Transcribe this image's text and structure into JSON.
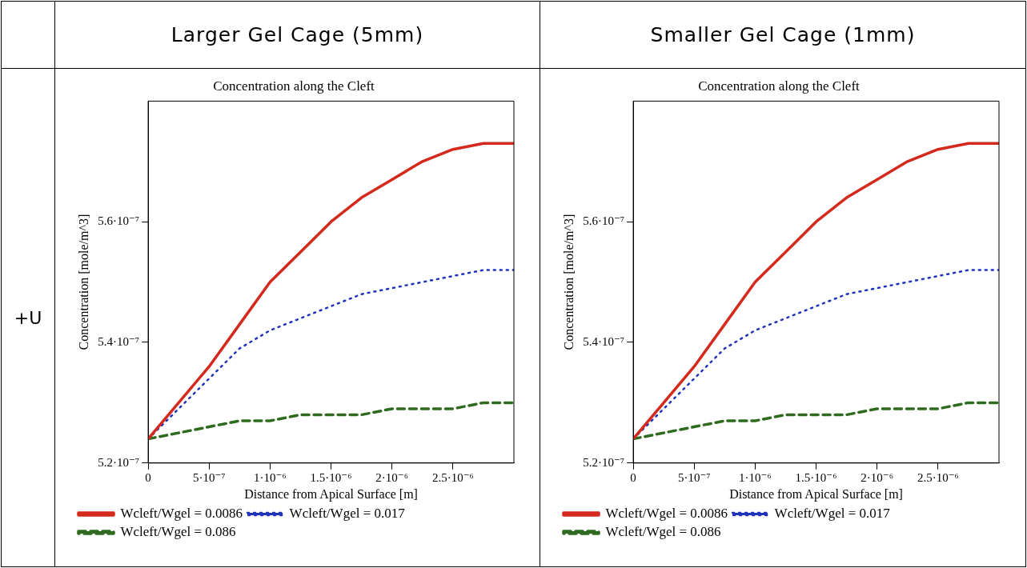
{
  "chart_data": [
    {
      "type": "line",
      "title": "Larger Gel Cage (5mm)",
      "subtitle": "Concentration along the Cleft",
      "xlabel": "Distance from Apical Surface [m]",
      "ylabel": "Concentration [mole/m^3]",
      "annotations": [
        "+U"
      ],
      "x": [
        0,
        2.5e-07,
        5e-07,
        7.5e-07,
        1e-06,
        1.25e-06,
        1.5e-06,
        1.75e-06,
        2e-06,
        2.25e-06,
        2.5e-06,
        2.75e-06,
        3e-06
      ],
      "series": [
        {
          "name": "Wcleft/Wgel = 0.0086",
          "color": "#d42a1e",
          "line_style": "solid",
          "values": [
            5.24e-07,
            5.3e-07,
            5.36e-07,
            5.43e-07,
            5.5e-07,
            5.55e-07,
            5.6e-07,
            5.64e-07,
            5.67e-07,
            5.7e-07,
            5.72e-07,
            5.73e-07,
            5.73e-07
          ]
        },
        {
          "name": "Wcleft/Wgel = 0.017",
          "color": "#2233bb",
          "line_style": "dotted",
          "values": [
            5.24e-07,
            5.29e-07,
            5.34e-07,
            5.39e-07,
            5.42e-07,
            5.44e-07,
            5.46e-07,
            5.48e-07,
            5.49e-07,
            5.5e-07,
            5.51e-07,
            5.52e-07,
            5.52e-07
          ]
        },
        {
          "name": "Wcleft/Wgel = 0.086",
          "color": "#2e6b1e",
          "line_style": "dashed",
          "values": [
            5.24e-07,
            5.25e-07,
            5.26e-07,
            5.27e-07,
            5.27e-07,
            5.28e-07,
            5.28e-07,
            5.28e-07,
            5.29e-07,
            5.29e-07,
            5.29e-07,
            5.3e-07,
            5.3e-07
          ]
        }
      ],
      "xlim": [
        0,
        3e-06
      ],
      "xticks": [
        0,
        {
          "value": 5e-07,
          "label": "5·10⁻⁷"
        },
        {
          "value": 1e-06,
          "label": "1·10⁻⁶"
        },
        {
          "value": 1.5e-06,
          "label": "1.5·10⁻⁶"
        },
        {
          "value": 2e-06,
          "label": "2·10⁻⁶"
        },
        {
          "value": 2.5e-06,
          "label": "2.5·10⁻⁶"
        }
      ],
      "ylim": [
        5.2e-07,
        5.8e-07
      ],
      "yticks": [
        {
          "value": 5.2e-07,
          "label": "5.2·10⁻⁷"
        },
        {
          "value": 5.4e-07,
          "label": "5.4·10⁻⁷"
        },
        {
          "value": 5.6e-07,
          "label": "5.6·10⁻⁷"
        }
      ],
      "legend": "bottom",
      "marker": "none",
      "grid": false
    },
    {
      "type": "line",
      "title": "Smaller Gel Cage (1mm)",
      "subtitle": "Concentration along the Cleft",
      "xlabel": "Distance from Apical Surface [m]",
      "ylabel": "Concentration [mole/m^3]",
      "x": [
        0,
        2.5e-07,
        5e-07,
        7.5e-07,
        1e-06,
        1.25e-06,
        1.5e-06,
        1.75e-06,
        2e-06,
        2.25e-06,
        2.5e-06,
        2.75e-06,
        3e-06
      ],
      "series": [
        {
          "name": "Wcleft/Wgel = 0.0086",
          "color": "#d42a1e",
          "line_style": "solid",
          "values": [
            5.24e-07,
            5.3e-07,
            5.36e-07,
            5.43e-07,
            5.5e-07,
            5.55e-07,
            5.6e-07,
            5.64e-07,
            5.67e-07,
            5.7e-07,
            5.72e-07,
            5.73e-07,
            5.73e-07
          ]
        },
        {
          "name": "Wcleft/Wgel = 0.017",
          "color": "#2233bb",
          "line_style": "dotted",
          "values": [
            5.24e-07,
            5.29e-07,
            5.34e-07,
            5.39e-07,
            5.42e-07,
            5.44e-07,
            5.46e-07,
            5.48e-07,
            5.49e-07,
            5.5e-07,
            5.51e-07,
            5.52e-07,
            5.52e-07
          ]
        },
        {
          "name": "Wcleft/Wgel = 0.086",
          "color": "#2e6b1e",
          "line_style": "dashed",
          "values": [
            5.24e-07,
            5.25e-07,
            5.26e-07,
            5.27e-07,
            5.27e-07,
            5.28e-07,
            5.28e-07,
            5.28e-07,
            5.29e-07,
            5.29e-07,
            5.29e-07,
            5.3e-07,
            5.3e-07
          ]
        }
      ],
      "xlim": [
        0,
        3e-06
      ],
      "xticks": [
        0,
        {
          "value": 5e-07,
          "label": "5·10⁻⁷"
        },
        {
          "value": 1e-06,
          "label": "1·10⁻⁶"
        },
        {
          "value": 1.5e-06,
          "label": "1.5·10⁻⁶"
        },
        {
          "value": 2e-06,
          "label": "2·10⁻⁶"
        },
        {
          "value": 2.5e-06,
          "label": "2.5·10⁻⁶"
        }
      ],
      "ylim": [
        5.2e-07,
        5.8e-07
      ],
      "yticks": [
        {
          "value": 5.2e-07,
          "label": "5.2·10⁻⁷"
        },
        {
          "value": 5.4e-07,
          "label": "5.4·10⁻⁷"
        },
        {
          "value": 5.6e-07,
          "label": "5.6·10⁻⁷"
        }
      ],
      "legend": "bottom",
      "marker": "none",
      "grid": false
    }
  ]
}
